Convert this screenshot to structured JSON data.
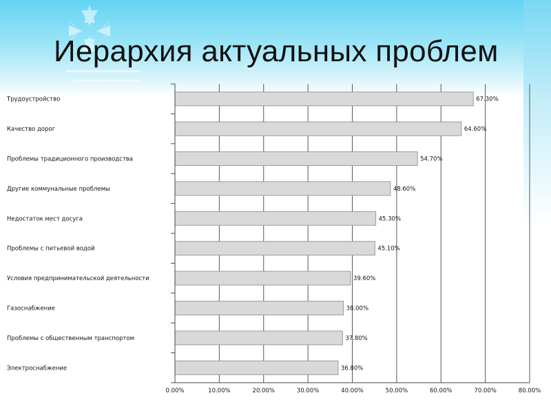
{
  "slide": {
    "title": "Иерархия актуальных проблем"
  },
  "chart_data": {
    "type": "bar",
    "orientation": "horizontal",
    "title": "",
    "xlabel": "",
    "ylabel": "",
    "categories": [
      "Трудоустройство",
      "Качество дорог",
      "Проблемы традиционного производства",
      "Другие коммунальные проблемы",
      "Недостаток мест досуга",
      "Проблемы с питьевой водой",
      "Условия предпринимательской деятельности",
      "Газоснабжение",
      "Проблемы с общественным транспортом",
      "Электроснабжение"
    ],
    "values": [
      67.3,
      64.6,
      54.7,
      48.6,
      45.3,
      45.1,
      39.6,
      38.0,
      37.8,
      36.8
    ],
    "value_labels": [
      "67.30%",
      "64.60%",
      "54.70%",
      "48.60%",
      "45.30%",
      "45.10%",
      "39.60%",
      "38.00%",
      "37.80%",
      "36.80%"
    ],
    "xlim": [
      0,
      80
    ],
    "x_ticks": [
      0,
      10,
      20,
      30,
      40,
      50,
      60,
      70,
      80
    ],
    "x_tick_labels": [
      "0.00%",
      "10.00%",
      "20.00%",
      "30.00%",
      "40.00%",
      "50.00%",
      "60.00%",
      "70.00%",
      "80.00%"
    ],
    "grid": true,
    "legend": "none",
    "colors": {
      "bar_fill": "#d9d9d9",
      "bar_stroke": "#9a9a9a",
      "gridline": "#555555",
      "text": "#111111"
    }
  }
}
